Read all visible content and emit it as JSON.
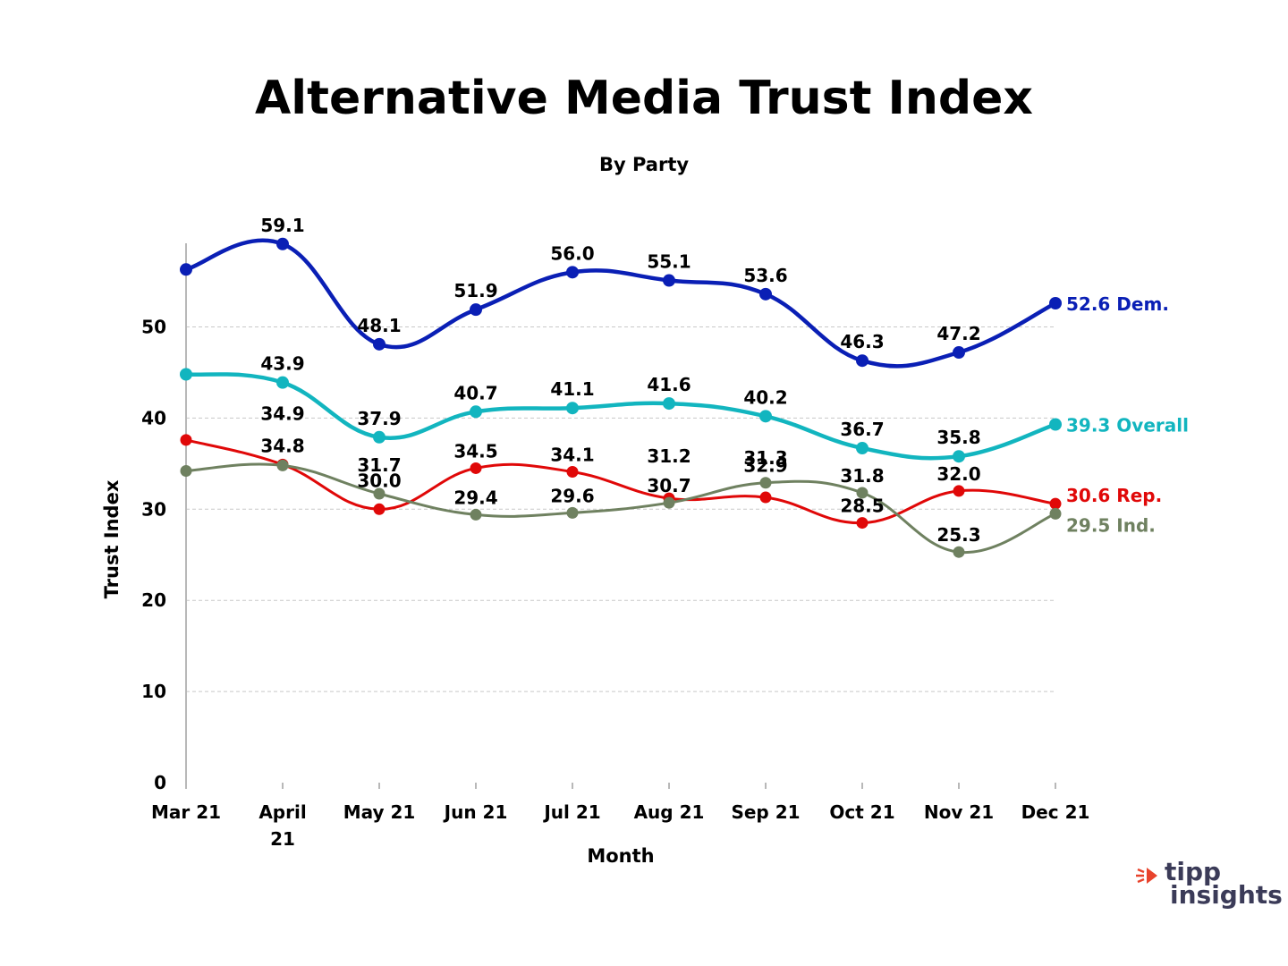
{
  "chart_data": {
    "type": "line",
    "title": "Alternative Media Trust Index",
    "subtitle": "By Party",
    "xlabel": "Month",
    "ylabel": "Trust Index",
    "ylim": [
      0,
      60
    ],
    "yticks": [
      0,
      10,
      20,
      30,
      40,
      50
    ],
    "grid": true,
    "categories": [
      [
        "Mar 21"
      ],
      [
        "April",
        "21"
      ],
      [
        "May 21"
      ],
      [
        "Jun 21"
      ],
      [
        "Jul 21"
      ],
      [
        "Aug 21"
      ],
      [
        "Sep 21"
      ],
      [
        "Oct 21"
      ],
      [
        "Nov 21"
      ],
      [
        "Dec 21"
      ]
    ],
    "series": [
      {
        "name": "Dem.",
        "color": "#0a1fb5",
        "values": [
          56.3,
          59.1,
          48.1,
          51.9,
          56.0,
          55.1,
          53.6,
          46.3,
          47.2,
          52.6
        ],
        "labels": [
          "",
          "59.1",
          "48.1",
          "51.9",
          "56.0",
          "55.1",
          "53.6",
          "46.3",
          "47.2",
          ""
        ],
        "end_label": "52.6 Dem."
      },
      {
        "name": "Overall",
        "color": "#12b5bf",
        "values": [
          44.8,
          43.9,
          37.9,
          40.7,
          41.1,
          41.6,
          40.2,
          36.7,
          35.8,
          39.3
        ],
        "labels": [
          "",
          "43.9",
          "37.9",
          "40.7",
          "41.1",
          "41.6",
          "40.2",
          "36.7",
          "35.8",
          ""
        ],
        "end_label": "39.3 Overall"
      },
      {
        "name": "Rep.",
        "color": "#e00808",
        "values": [
          37.6,
          34.9,
          30.0,
          34.5,
          34.1,
          31.2,
          31.3,
          28.5,
          32.0,
          30.6
        ],
        "labels": [
          "",
          "34.9",
          "30.0",
          "34.5",
          "34.1",
          "31.2",
          "31.3",
          "28.5",
          "32.0",
          ""
        ],
        "end_label": "30.6 Rep."
      },
      {
        "name": "Ind.",
        "color": "#6f8160",
        "values": [
          34.2,
          34.8,
          31.7,
          29.4,
          29.6,
          30.7,
          32.9,
          31.8,
          25.3,
          29.5
        ],
        "labels": [
          "",
          "34.8",
          "31.7",
          "29.4",
          "29.6",
          "30.7",
          "32.9",
          "31.8",
          "25.3",
          ""
        ],
        "end_label": "29.5 Ind."
      }
    ]
  },
  "brand": {
    "line1": "tipp",
    "line2": "insights",
    "mark_color": "#e8432c",
    "text_color": "#3b3b58"
  }
}
